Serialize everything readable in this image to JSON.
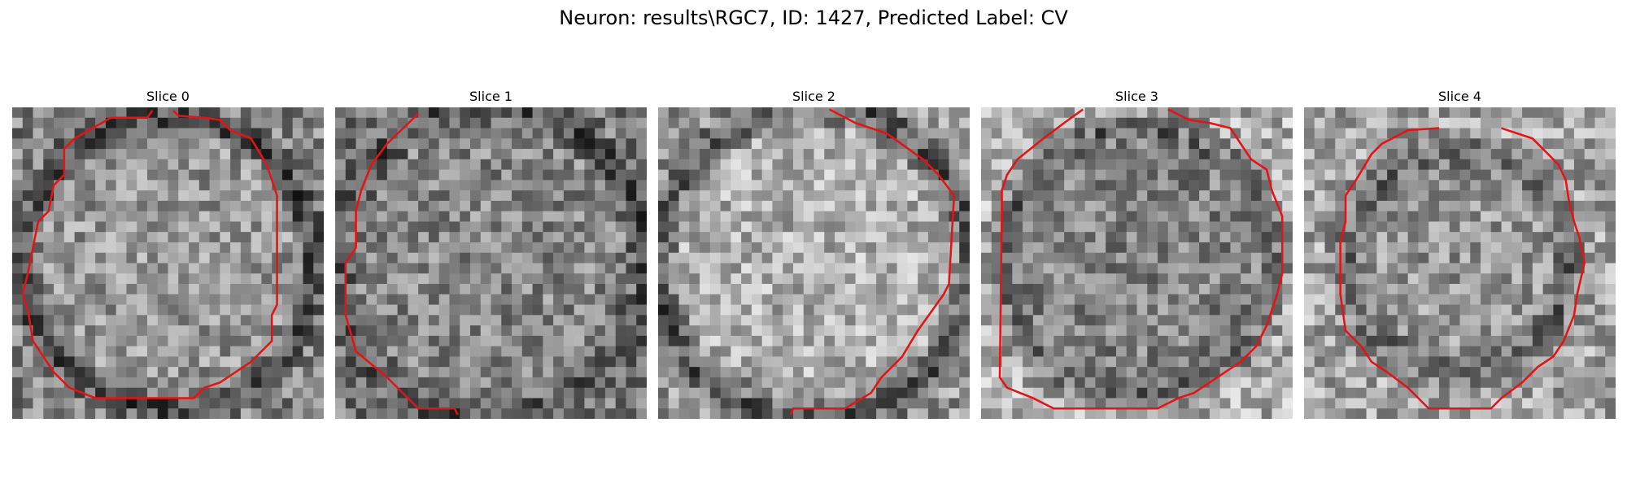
{
  "figure": {
    "title": "Neuron: results\\RGC7, ID: 1427, Predicted Label: CV"
  },
  "panels": [
    {
      "title": "Slice 0"
    },
    {
      "title": "Slice 1"
    },
    {
      "title": "Slice 2"
    },
    {
      "title": "Slice 3"
    },
    {
      "title": "Slice 4"
    }
  ],
  "style": {
    "contour_color": "#e41414",
    "image_colormap": "gray",
    "background": "#ffffff"
  }
}
